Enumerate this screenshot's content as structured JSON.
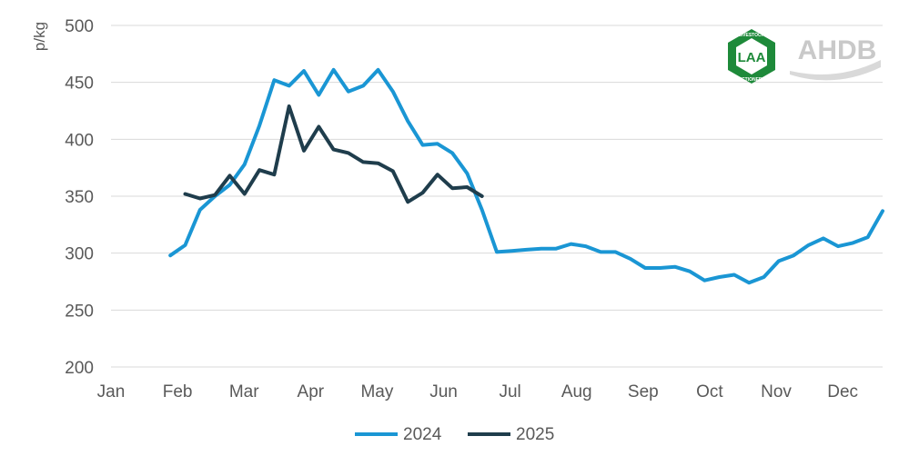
{
  "chart_data": {
    "type": "line",
    "title": "",
    "xlabel": "",
    "ylabel": "p/kg",
    "ylim": [
      200,
      500
    ],
    "yticks": [
      200,
      250,
      300,
      350,
      400,
      450,
      500
    ],
    "x_unit": "week of year",
    "xlim": [
      1,
      53
    ],
    "categories": [
      "Jan",
      "Feb",
      "Mar",
      "Apr",
      "May",
      "Jun",
      "Jul",
      "Aug",
      "Sep",
      "Oct",
      "Nov",
      "Dec"
    ],
    "grid": true,
    "legend_position": "bottom",
    "series": [
      {
        "name": "2024",
        "color": "#1a96d4",
        "x": [
          5,
          6,
          7,
          8,
          9,
          10,
          11,
          12,
          13,
          14,
          15,
          16,
          17,
          18,
          19,
          20,
          21,
          22,
          23,
          24,
          25,
          26,
          27,
          28,
          29,
          30,
          31,
          32,
          33,
          34,
          35,
          36,
          37,
          38,
          39,
          40,
          41,
          42,
          43,
          44,
          45,
          46,
          47,
          48,
          49,
          50,
          51,
          52,
          53
        ],
        "values": [
          298,
          307,
          338,
          350,
          360,
          378,
          412,
          452,
          447,
          460,
          439,
          461,
          442,
          447,
          461,
          442,
          416,
          395,
          396,
          388,
          370,
          338,
          301,
          302,
          303,
          304,
          304,
          308,
          306,
          301,
          301,
          295,
          287,
          287,
          288,
          284,
          276,
          279,
          281,
          274,
          279,
          293,
          298,
          307,
          313,
          306,
          309,
          314,
          337
        ]
      },
      {
        "name": "2025",
        "color": "#1f3d4c",
        "x": [
          6,
          7,
          8,
          9,
          10,
          11,
          12,
          13,
          14,
          15,
          16,
          17,
          18,
          19,
          20,
          21,
          22,
          23,
          24,
          25,
          26
        ],
        "values": [
          352,
          348,
          351,
          368,
          352,
          373,
          369,
          429,
          390,
          411,
          391,
          388,
          380,
          379,
          372,
          345,
          353,
          369,
          357,
          358,
          350
        ]
      }
    ]
  },
  "logos": {
    "laa": {
      "lines": [
        "LIVESTOCK",
        "LAA",
        "AUCTIONEERS"
      ],
      "color": "#1e8a3a"
    },
    "ahdb": {
      "text": "AHDB",
      "color": "#c9c9c9"
    }
  }
}
